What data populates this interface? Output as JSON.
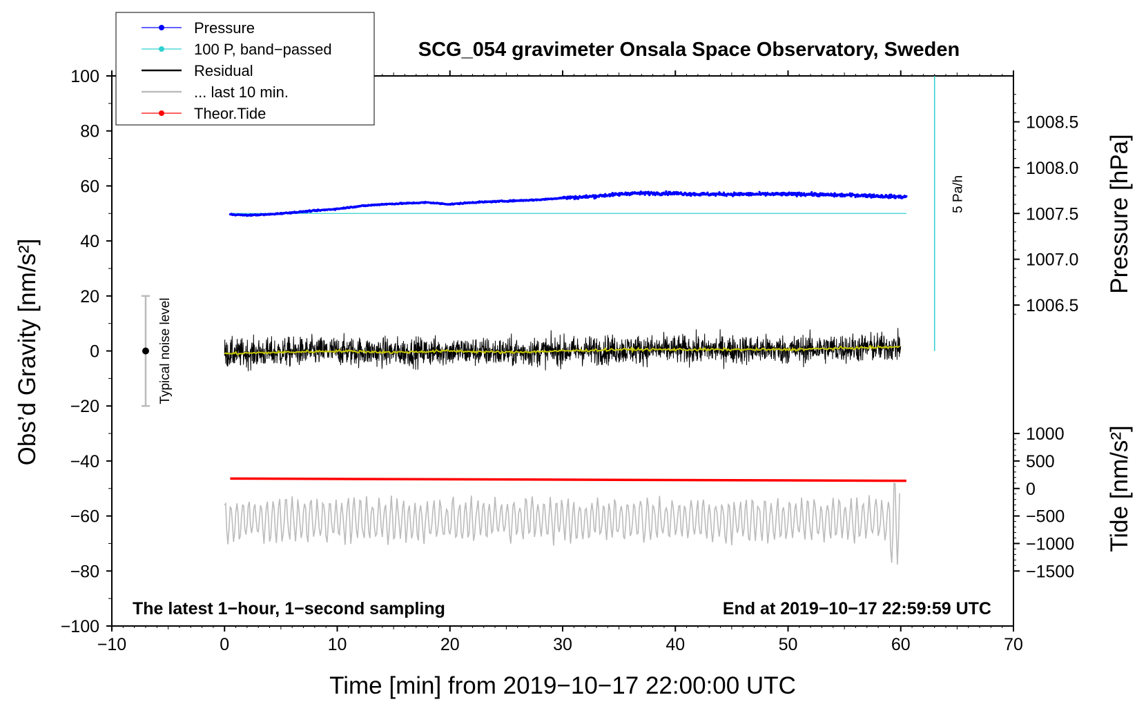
{
  "chart_data": {
    "type": "line",
    "title": "SCG_054 gravimeter Onsala Space Observatory, Sweden",
    "xlabel": "Time [min] from 2019−10−17 22:00:00 UTC",
    "ylabel": "Obs’d Gravity [nm/s²]",
    "ylabel_right_top": "Pressure [hPa]",
    "ylabel_right_bottom": "Tide [nm/s²]",
    "xlim": [
      -10,
      70
    ],
    "ylim": [
      -100,
      100
    ],
    "x_ticks": [
      -10,
      0,
      10,
      20,
      30,
      40,
      50,
      60,
      70
    ],
    "x_tick_labels": [
      "−10",
      "0",
      "10",
      "20",
      "30",
      "40",
      "50",
      "60",
      "70"
    ],
    "y_ticks": [
      100,
      80,
      60,
      40,
      20,
      0,
      -20,
      -40,
      -60,
      -80,
      -100
    ],
    "y_tick_labels": [
      "100",
      "80",
      "60",
      "40",
      "20",
      "0",
      "−20",
      "−40",
      "−60",
      "−80",
      "−100"
    ],
    "pressure_axis": {
      "ticks": [
        1008.5,
        1008.0,
        1007.5,
        1007.0,
        1006.5
      ],
      "labels": [
        "1008.5",
        "1008.0",
        "1007.5",
        "1007.0",
        "1006.5"
      ],
      "ref_gravity": 50,
      "ref_hpa": 1007.5,
      "gravity_per_hpa": 33.3
    },
    "tide_axis": {
      "ticks": [
        1000,
        500,
        0,
        -500,
        -1000,
        -1500
      ],
      "labels": [
        "1000",
        "500",
        "0",
        "−500",
        "−1000",
        "−1500"
      ],
      "gravity_at_zero": -50,
      "gravity_per_unit": 0.02
    },
    "series": [
      {
        "name": "Pressure",
        "color": "#0000ff",
        "axis": "pressure",
        "x": [
          0.5,
          2,
          4,
          6,
          8,
          10,
          12,
          14,
          16,
          18,
          20,
          22,
          24,
          26,
          28,
          30,
          32,
          34,
          36,
          38,
          40,
          42,
          44,
          46,
          48,
          50,
          52,
          54,
          56,
          58,
          60.5
        ],
        "values": [
          1007.49,
          1007.48,
          1007.49,
          1007.51,
          1007.53,
          1007.55,
          1007.58,
          1007.6,
          1007.61,
          1007.62,
          1007.6,
          1007.62,
          1007.63,
          1007.64,
          1007.65,
          1007.67,
          1007.68,
          1007.7,
          1007.72,
          1007.72,
          1007.72,
          1007.71,
          1007.71,
          1007.71,
          1007.71,
          1007.71,
          1007.71,
          1007.7,
          1007.7,
          1007.69,
          1007.68
        ]
      },
      {
        "name": "100 P, band−passed",
        "color": "#30d0d0",
        "axis": "gravity",
        "x": [
          0.5,
          60.5
        ],
        "values": [
          50,
          50
        ]
      },
      {
        "name": "Residual",
        "color": "#000000",
        "axis": "gravity",
        "x": [
          0,
          5,
          10,
          15,
          20,
          25,
          30,
          35,
          40,
          45,
          50,
          55,
          60
        ],
        "values": [
          -1,
          -0.5,
          0,
          -0.5,
          0,
          -0.5,
          0,
          0.5,
          0.5,
          0.5,
          0.5,
          1,
          1.5
        ],
        "noise_range": [
          -15,
          16
        ]
      },
      {
        "name": "Residual smoothed",
        "color": "#c8c800",
        "axis": "gravity",
        "x": [
          0,
          5,
          10,
          15,
          20,
          25,
          30,
          35,
          40,
          45,
          50,
          55,
          60
        ],
        "values": [
          -1,
          -0.5,
          0,
          -0.5,
          0,
          -0.5,
          0,
          0.5,
          0.5,
          0.5,
          0.5,
          1,
          1.5
        ]
      },
      {
        "name": "... last 10 min.",
        "color": "#bbbbbb",
        "axis": "gravity",
        "x": [
          0,
          60
        ],
        "values": [
          -61,
          -61
        ],
        "noise_range": [
          -77,
          -46
        ]
      },
      {
        "name": "Theor.Tide",
        "color": "#ff0000",
        "axis": "tide",
        "x": [
          0.5,
          60.5
        ],
        "values": [
          180,
          140
        ]
      }
    ],
    "legend": {
      "position": "top-left",
      "entries": [
        {
          "label": "Pressure",
          "color": "#0000ff",
          "marker": true
        },
        {
          "label": "100 P, band−passed",
          "color": "#30d0d0",
          "marker": true
        },
        {
          "label": "Residual",
          "color": "#000000",
          "marker": false
        },
        {
          "label": "... last 10 min.",
          "color": "#bbbbbb",
          "marker": false
        },
        {
          "label": "Theor.Tide",
          "color": "#ff0000",
          "marker": true
        }
      ]
    },
    "noise_level": {
      "x": -7,
      "center": 0,
      "min": -20,
      "max": 20,
      "label": "Typical noise level"
    },
    "scale_bar": {
      "x": 63,
      "from": 0,
      "to": 100,
      "label": "5 Pa/h"
    },
    "annotations": {
      "bottom_left": "The latest 1−hour, 1−second sampling",
      "bottom_right": "End at 2019−10−17 22:59:59 UTC"
    }
  }
}
